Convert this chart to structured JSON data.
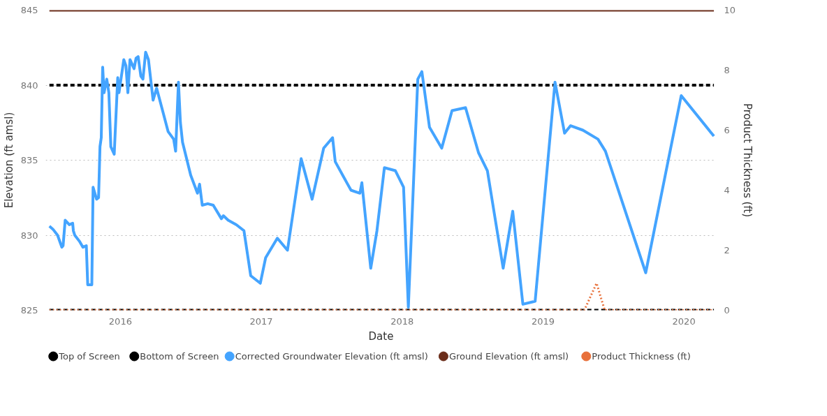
{
  "chart_data": {
    "type": "line",
    "xlabel": "Date",
    "ylabel": "Elevation (ft amsl)",
    "y2label": "Product Thickness (ft)",
    "xlim": [
      2015.47,
      2020.23
    ],
    "xticks": [
      2016,
      2017,
      2018,
      2019,
      2020
    ],
    "ylim": [
      825,
      845
    ],
    "yticks": [
      825,
      830,
      835,
      840,
      845
    ],
    "y2lim": [
      0,
      10
    ],
    "y2ticks": [
      0,
      2,
      4,
      6,
      8,
      10
    ],
    "grid": "y",
    "legend": "bottom",
    "series": [
      {
        "name": "Top of Screen",
        "color": "#000000",
        "line_style": "dashed",
        "x": [
          2015.496,
          2020.213
        ],
        "values": [
          840,
          840
        ]
      },
      {
        "name": "Bottom of Screen",
        "color": "#000000",
        "line_style": "dashed",
        "x": [
          2015.496,
          2020.213
        ],
        "values": [
          825,
          825
        ]
      },
      {
        "name": "Corrected Groundwater Elevation (ft amsl)",
        "color": "#44a4ff",
        "line_style": "solid",
        "x": [
          2015.496,
          2015.521,
          2015.554,
          2015.584,
          2015.593,
          2015.608,
          2015.637,
          2015.661,
          2015.666,
          2015.676,
          2015.709,
          2015.734,
          2015.758,
          2015.768,
          2015.797,
          2015.806,
          2015.831,
          2015.845,
          2015.855,
          2015.864,
          2015.874,
          2015.884,
          2015.903,
          2015.918,
          2015.932,
          2015.956,
          2015.981,
          2015.99,
          2016.024,
          2016.039,
          2016.053,
          2016.068,
          2016.097,
          2016.111,
          2016.126,
          2016.145,
          2016.16,
          2016.179,
          2016.199,
          2016.232,
          2016.257,
          2016.305,
          2016.339,
          2016.378,
          2016.392,
          2016.412,
          2016.426,
          2016.441,
          2016.499,
          2016.547,
          2016.562,
          2016.581,
          2016.62,
          2016.659,
          2016.717,
          2016.731,
          2016.765,
          2016.823,
          2016.877,
          2016.925,
          2016.993,
          2017.031,
          2017.114,
          2017.186,
          2017.283,
          2017.361,
          2017.443,
          2017.506,
          2017.525,
          2017.613,
          2017.637,
          2017.7,
          2017.714,
          2017.777,
          2017.821,
          2017.874,
          2017.952,
          2018.01,
          2018.044,
          2018.111,
          2018.14,
          2018.194,
          2018.281,
          2018.354,
          2018.45,
          2018.542,
          2018.605,
          2018.717,
          2018.785,
          2018.857,
          2018.944,
          2019.085,
          2019.153,
          2019.196,
          2019.283,
          2019.39,
          2019.443,
          2019.729,
          2019.981,
          2020.213
        ],
        "values": [
          830.6,
          830.4,
          830.0,
          829.2,
          829.3,
          831.0,
          830.7,
          830.8,
          830.3,
          830.0,
          829.6,
          829.2,
          829.3,
          826.7,
          826.7,
          833.2,
          832.4,
          832.5,
          835.9,
          836.5,
          841.2,
          839.5,
          840.4,
          839.5,
          835.9,
          835.4,
          840.5,
          839.5,
          841.7,
          841.3,
          839.5,
          841.7,
          841.1,
          841.8,
          841.9,
          840.6,
          840.4,
          842.2,
          841.7,
          839.0,
          839.8,
          838.1,
          836.9,
          836.4,
          835.6,
          840.2,
          837.5,
          836.2,
          834.0,
          832.8,
          833.4,
          832.0,
          832.1,
          832.0,
          831.1,
          831.3,
          831.0,
          830.7,
          830.3,
          827.3,
          826.8,
          828.5,
          829.8,
          829.0,
          835.1,
          832.4,
          835.8,
          836.5,
          834.9,
          833.4,
          833.0,
          832.8,
          833.5,
          827.8,
          830.3,
          834.5,
          834.3,
          833.2,
          825.2,
          840.4,
          840.9,
          837.2,
          835.8,
          838.3,
          838.5,
          835.5,
          834.3,
          827.8,
          831.6,
          825.4,
          825.6,
          840.2,
          836.8,
          837.3,
          837.0,
          836.4,
          835.6,
          827.5,
          839.3,
          836.6
        ]
      },
      {
        "name": "Ground Elevation (ft amsl)",
        "color": "#6b2d1a",
        "line_style": "solid",
        "x": [
          2015.496,
          2020.213
        ],
        "values": [
          845,
          845
        ]
      },
      {
        "name": "Product Thickness (ft)",
        "color": "#e8703a",
        "line_style": "dotted",
        "axis": "y2",
        "x": [
          2015.496,
          2019.293,
          2019.38,
          2019.438,
          2020.213
        ],
        "values": [
          0,
          0,
          0.9,
          0,
          0
        ]
      }
    ]
  }
}
